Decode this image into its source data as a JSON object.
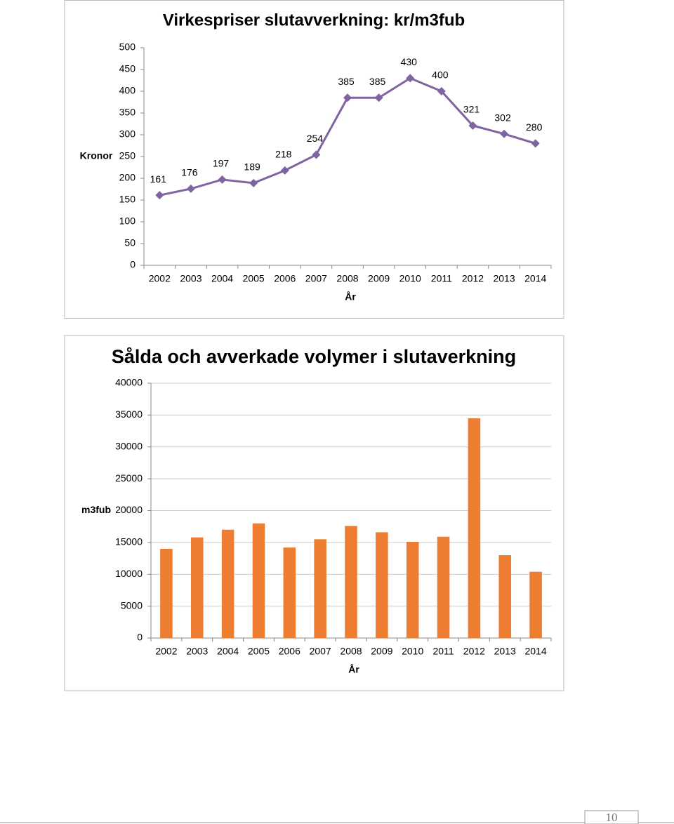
{
  "chart_data": [
    {
      "type": "line",
      "title": "Virkespriser slutavverkning: kr/m3fub",
      "ylabel": "Kronor",
      "xlabel": "År",
      "categories": [
        "2002",
        "2003",
        "2004",
        "2005",
        "2006",
        "2007",
        "2008",
        "2009",
        "2010",
        "2011",
        "2012",
        "2013",
        "2014"
      ],
      "values": [
        161,
        176,
        197,
        189,
        218,
        254,
        385,
        385,
        430,
        400,
        321,
        302,
        280
      ],
      "color": "#8064a2",
      "ylim": [
        0,
        500
      ],
      "yticks": [
        0,
        50,
        100,
        150,
        200,
        250,
        300,
        350,
        400,
        450,
        500
      ],
      "grid": false
    },
    {
      "type": "bar",
      "title": "Sålda och avverkade volymer i slutaverkning",
      "ylabel": "m3fub",
      "xlabel": "År",
      "categories": [
        "2002",
        "2003",
        "2004",
        "2005",
        "2006",
        "2007",
        "2008",
        "2009",
        "2010",
        "2011",
        "2012",
        "2013",
        "2014"
      ],
      "values": [
        14000,
        15800,
        17000,
        18000,
        14200,
        15500,
        17600,
        16600,
        15100,
        15900,
        34500,
        13000,
        10400
      ],
      "color": "#ed7d31",
      "ylim": [
        0,
        40000
      ],
      "yticks": [
        0,
        5000,
        10000,
        15000,
        20000,
        25000,
        30000,
        35000,
        40000
      ],
      "grid": true
    }
  ],
  "page_number": "10"
}
